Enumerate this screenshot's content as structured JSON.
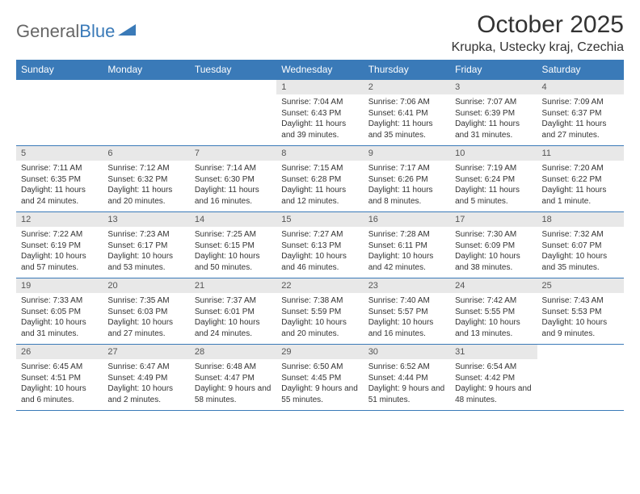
{
  "brand": {
    "part1": "General",
    "part2": "Blue"
  },
  "title": "October 2025",
  "location": "Krupka, Ustecky kraj, Czechia",
  "colors": {
    "header_bg": "#3a7ab8",
    "header_text": "#ffffff",
    "daynum_bg": "#e8e8e8",
    "border": "#3a7ab8",
    "text": "#333333",
    "background": "#ffffff"
  },
  "typography": {
    "title_fontsize": 30,
    "location_fontsize": 16,
    "header_fontsize": 12,
    "cell_fontsize": 10
  },
  "day_headers": [
    "Sunday",
    "Monday",
    "Tuesday",
    "Wednesday",
    "Thursday",
    "Friday",
    "Saturday"
  ],
  "weeks": [
    [
      {
        "n": "",
        "t": ""
      },
      {
        "n": "",
        "t": ""
      },
      {
        "n": "",
        "t": ""
      },
      {
        "n": "1",
        "t": "Sunrise: 7:04 AM\nSunset: 6:43 PM\nDaylight: 11 hours and 39 minutes."
      },
      {
        "n": "2",
        "t": "Sunrise: 7:06 AM\nSunset: 6:41 PM\nDaylight: 11 hours and 35 minutes."
      },
      {
        "n": "3",
        "t": "Sunrise: 7:07 AM\nSunset: 6:39 PM\nDaylight: 11 hours and 31 minutes."
      },
      {
        "n": "4",
        "t": "Sunrise: 7:09 AM\nSunset: 6:37 PM\nDaylight: 11 hours and 27 minutes."
      }
    ],
    [
      {
        "n": "5",
        "t": "Sunrise: 7:11 AM\nSunset: 6:35 PM\nDaylight: 11 hours and 24 minutes."
      },
      {
        "n": "6",
        "t": "Sunrise: 7:12 AM\nSunset: 6:32 PM\nDaylight: 11 hours and 20 minutes."
      },
      {
        "n": "7",
        "t": "Sunrise: 7:14 AM\nSunset: 6:30 PM\nDaylight: 11 hours and 16 minutes."
      },
      {
        "n": "8",
        "t": "Sunrise: 7:15 AM\nSunset: 6:28 PM\nDaylight: 11 hours and 12 minutes."
      },
      {
        "n": "9",
        "t": "Sunrise: 7:17 AM\nSunset: 6:26 PM\nDaylight: 11 hours and 8 minutes."
      },
      {
        "n": "10",
        "t": "Sunrise: 7:19 AM\nSunset: 6:24 PM\nDaylight: 11 hours and 5 minutes."
      },
      {
        "n": "11",
        "t": "Sunrise: 7:20 AM\nSunset: 6:22 PM\nDaylight: 11 hours and 1 minute."
      }
    ],
    [
      {
        "n": "12",
        "t": "Sunrise: 7:22 AM\nSunset: 6:19 PM\nDaylight: 10 hours and 57 minutes."
      },
      {
        "n": "13",
        "t": "Sunrise: 7:23 AM\nSunset: 6:17 PM\nDaylight: 10 hours and 53 minutes."
      },
      {
        "n": "14",
        "t": "Sunrise: 7:25 AM\nSunset: 6:15 PM\nDaylight: 10 hours and 50 minutes."
      },
      {
        "n": "15",
        "t": "Sunrise: 7:27 AM\nSunset: 6:13 PM\nDaylight: 10 hours and 46 minutes."
      },
      {
        "n": "16",
        "t": "Sunrise: 7:28 AM\nSunset: 6:11 PM\nDaylight: 10 hours and 42 minutes."
      },
      {
        "n": "17",
        "t": "Sunrise: 7:30 AM\nSunset: 6:09 PM\nDaylight: 10 hours and 38 minutes."
      },
      {
        "n": "18",
        "t": "Sunrise: 7:32 AM\nSunset: 6:07 PM\nDaylight: 10 hours and 35 minutes."
      }
    ],
    [
      {
        "n": "19",
        "t": "Sunrise: 7:33 AM\nSunset: 6:05 PM\nDaylight: 10 hours and 31 minutes."
      },
      {
        "n": "20",
        "t": "Sunrise: 7:35 AM\nSunset: 6:03 PM\nDaylight: 10 hours and 27 minutes."
      },
      {
        "n": "21",
        "t": "Sunrise: 7:37 AM\nSunset: 6:01 PM\nDaylight: 10 hours and 24 minutes."
      },
      {
        "n": "22",
        "t": "Sunrise: 7:38 AM\nSunset: 5:59 PM\nDaylight: 10 hours and 20 minutes."
      },
      {
        "n": "23",
        "t": "Sunrise: 7:40 AM\nSunset: 5:57 PM\nDaylight: 10 hours and 16 minutes."
      },
      {
        "n": "24",
        "t": "Sunrise: 7:42 AM\nSunset: 5:55 PM\nDaylight: 10 hours and 13 minutes."
      },
      {
        "n": "25",
        "t": "Sunrise: 7:43 AM\nSunset: 5:53 PM\nDaylight: 10 hours and 9 minutes."
      }
    ],
    [
      {
        "n": "26",
        "t": "Sunrise: 6:45 AM\nSunset: 4:51 PM\nDaylight: 10 hours and 6 minutes."
      },
      {
        "n": "27",
        "t": "Sunrise: 6:47 AM\nSunset: 4:49 PM\nDaylight: 10 hours and 2 minutes."
      },
      {
        "n": "28",
        "t": "Sunrise: 6:48 AM\nSunset: 4:47 PM\nDaylight: 9 hours and 58 minutes."
      },
      {
        "n": "29",
        "t": "Sunrise: 6:50 AM\nSunset: 4:45 PM\nDaylight: 9 hours and 55 minutes."
      },
      {
        "n": "30",
        "t": "Sunrise: 6:52 AM\nSunset: 4:44 PM\nDaylight: 9 hours and 51 minutes."
      },
      {
        "n": "31",
        "t": "Sunrise: 6:54 AM\nSunset: 4:42 PM\nDaylight: 9 hours and 48 minutes."
      },
      {
        "n": "",
        "t": ""
      }
    ]
  ]
}
